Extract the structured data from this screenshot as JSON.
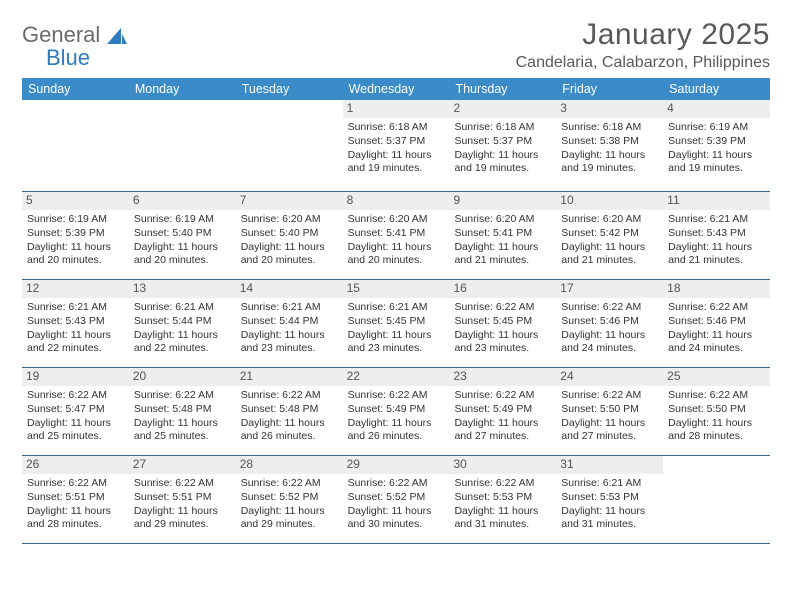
{
  "colors": {
    "header_band": "#3b8bc9",
    "week_divider": "#3b6b90",
    "daynum_bg": "#eeeeee",
    "text": "#333333",
    "title_text": "#595959",
    "logo_gray": "#6b6b6b",
    "logo_blue": "#2f7bbf",
    "page_bg": "#ffffff"
  },
  "typography": {
    "month_title_fontsize": 30,
    "location_fontsize": 16,
    "dow_fontsize": 12.5,
    "daynum_fontsize": 12,
    "body_fontsize": 10.5
  },
  "logo": {
    "word1": "General",
    "word2": "Blue"
  },
  "title": {
    "month": "January 2025",
    "location": "Candelaria, Calabarzon, Philippines"
  },
  "dow": [
    "Sunday",
    "Monday",
    "Tuesday",
    "Wednesday",
    "Thursday",
    "Friday",
    "Saturday"
  ],
  "weeks": [
    [
      {
        "blank": true
      },
      {
        "blank": true
      },
      {
        "blank": true
      },
      {
        "n": "1",
        "sunrise": "Sunrise: 6:18 AM",
        "sunset": "Sunset: 5:37 PM",
        "d1": "Daylight: 11 hours",
        "d2": "and 19 minutes."
      },
      {
        "n": "2",
        "sunrise": "Sunrise: 6:18 AM",
        "sunset": "Sunset: 5:37 PM",
        "d1": "Daylight: 11 hours",
        "d2": "and 19 minutes."
      },
      {
        "n": "3",
        "sunrise": "Sunrise: 6:18 AM",
        "sunset": "Sunset: 5:38 PM",
        "d1": "Daylight: 11 hours",
        "d2": "and 19 minutes."
      },
      {
        "n": "4",
        "sunrise": "Sunrise: 6:19 AM",
        "sunset": "Sunset: 5:39 PM",
        "d1": "Daylight: 11 hours",
        "d2": "and 19 minutes."
      }
    ],
    [
      {
        "n": "5",
        "sunrise": "Sunrise: 6:19 AM",
        "sunset": "Sunset: 5:39 PM",
        "d1": "Daylight: 11 hours",
        "d2": "and 20 minutes."
      },
      {
        "n": "6",
        "sunrise": "Sunrise: 6:19 AM",
        "sunset": "Sunset: 5:40 PM",
        "d1": "Daylight: 11 hours",
        "d2": "and 20 minutes."
      },
      {
        "n": "7",
        "sunrise": "Sunrise: 6:20 AM",
        "sunset": "Sunset: 5:40 PM",
        "d1": "Daylight: 11 hours",
        "d2": "and 20 minutes."
      },
      {
        "n": "8",
        "sunrise": "Sunrise: 6:20 AM",
        "sunset": "Sunset: 5:41 PM",
        "d1": "Daylight: 11 hours",
        "d2": "and 20 minutes."
      },
      {
        "n": "9",
        "sunrise": "Sunrise: 6:20 AM",
        "sunset": "Sunset: 5:41 PM",
        "d1": "Daylight: 11 hours",
        "d2": "and 21 minutes."
      },
      {
        "n": "10",
        "sunrise": "Sunrise: 6:20 AM",
        "sunset": "Sunset: 5:42 PM",
        "d1": "Daylight: 11 hours",
        "d2": "and 21 minutes."
      },
      {
        "n": "11",
        "sunrise": "Sunrise: 6:21 AM",
        "sunset": "Sunset: 5:43 PM",
        "d1": "Daylight: 11 hours",
        "d2": "and 21 minutes."
      }
    ],
    [
      {
        "n": "12",
        "sunrise": "Sunrise: 6:21 AM",
        "sunset": "Sunset: 5:43 PM",
        "d1": "Daylight: 11 hours",
        "d2": "and 22 minutes."
      },
      {
        "n": "13",
        "sunrise": "Sunrise: 6:21 AM",
        "sunset": "Sunset: 5:44 PM",
        "d1": "Daylight: 11 hours",
        "d2": "and 22 minutes."
      },
      {
        "n": "14",
        "sunrise": "Sunrise: 6:21 AM",
        "sunset": "Sunset: 5:44 PM",
        "d1": "Daylight: 11 hours",
        "d2": "and 23 minutes."
      },
      {
        "n": "15",
        "sunrise": "Sunrise: 6:21 AM",
        "sunset": "Sunset: 5:45 PM",
        "d1": "Daylight: 11 hours",
        "d2": "and 23 minutes."
      },
      {
        "n": "16",
        "sunrise": "Sunrise: 6:22 AM",
        "sunset": "Sunset: 5:45 PM",
        "d1": "Daylight: 11 hours",
        "d2": "and 23 minutes."
      },
      {
        "n": "17",
        "sunrise": "Sunrise: 6:22 AM",
        "sunset": "Sunset: 5:46 PM",
        "d1": "Daylight: 11 hours",
        "d2": "and 24 minutes."
      },
      {
        "n": "18",
        "sunrise": "Sunrise: 6:22 AM",
        "sunset": "Sunset: 5:46 PM",
        "d1": "Daylight: 11 hours",
        "d2": "and 24 minutes."
      }
    ],
    [
      {
        "n": "19",
        "sunrise": "Sunrise: 6:22 AM",
        "sunset": "Sunset: 5:47 PM",
        "d1": "Daylight: 11 hours",
        "d2": "and 25 minutes."
      },
      {
        "n": "20",
        "sunrise": "Sunrise: 6:22 AM",
        "sunset": "Sunset: 5:48 PM",
        "d1": "Daylight: 11 hours",
        "d2": "and 25 minutes."
      },
      {
        "n": "21",
        "sunrise": "Sunrise: 6:22 AM",
        "sunset": "Sunset: 5:48 PM",
        "d1": "Daylight: 11 hours",
        "d2": "and 26 minutes."
      },
      {
        "n": "22",
        "sunrise": "Sunrise: 6:22 AM",
        "sunset": "Sunset: 5:49 PM",
        "d1": "Daylight: 11 hours",
        "d2": "and 26 minutes."
      },
      {
        "n": "23",
        "sunrise": "Sunrise: 6:22 AM",
        "sunset": "Sunset: 5:49 PM",
        "d1": "Daylight: 11 hours",
        "d2": "and 27 minutes."
      },
      {
        "n": "24",
        "sunrise": "Sunrise: 6:22 AM",
        "sunset": "Sunset: 5:50 PM",
        "d1": "Daylight: 11 hours",
        "d2": "and 27 minutes."
      },
      {
        "n": "25",
        "sunrise": "Sunrise: 6:22 AM",
        "sunset": "Sunset: 5:50 PM",
        "d1": "Daylight: 11 hours",
        "d2": "and 28 minutes."
      }
    ],
    [
      {
        "n": "26",
        "sunrise": "Sunrise: 6:22 AM",
        "sunset": "Sunset: 5:51 PM",
        "d1": "Daylight: 11 hours",
        "d2": "and 28 minutes."
      },
      {
        "n": "27",
        "sunrise": "Sunrise: 6:22 AM",
        "sunset": "Sunset: 5:51 PM",
        "d1": "Daylight: 11 hours",
        "d2": "and 29 minutes."
      },
      {
        "n": "28",
        "sunrise": "Sunrise: 6:22 AM",
        "sunset": "Sunset: 5:52 PM",
        "d1": "Daylight: 11 hours",
        "d2": "and 29 minutes."
      },
      {
        "n": "29",
        "sunrise": "Sunrise: 6:22 AM",
        "sunset": "Sunset: 5:52 PM",
        "d1": "Daylight: 11 hours",
        "d2": "and 30 minutes."
      },
      {
        "n": "30",
        "sunrise": "Sunrise: 6:22 AM",
        "sunset": "Sunset: 5:53 PM",
        "d1": "Daylight: 11 hours",
        "d2": "and 31 minutes."
      },
      {
        "n": "31",
        "sunrise": "Sunrise: 6:21 AM",
        "sunset": "Sunset: 5:53 PM",
        "d1": "Daylight: 11 hours",
        "d2": "and 31 minutes."
      },
      {
        "blank": true
      }
    ]
  ]
}
